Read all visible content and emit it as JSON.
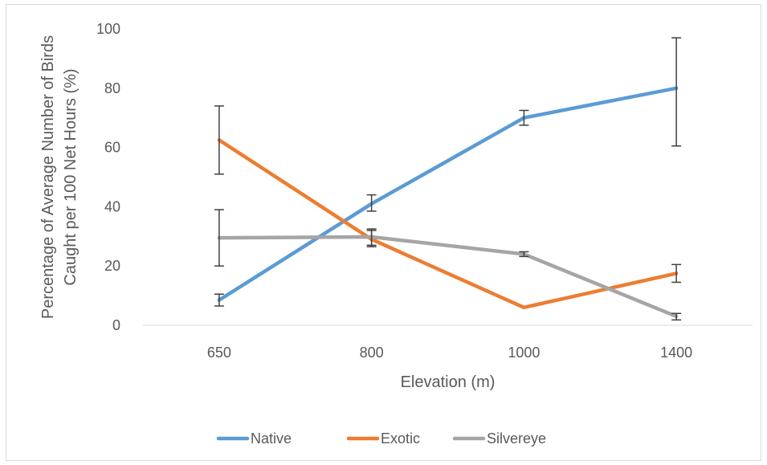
{
  "chart_data": {
    "type": "line",
    "title": "",
    "xlabel": "Elevation (m)",
    "ylabel_lines": [
      "Percentage of Average Number of Birds",
      "Caught per 100 Net Hours (%)"
    ],
    "categories": [
      "650",
      "800",
      "1000",
      "1400"
    ],
    "ylim": [
      0,
      100
    ],
    "yticks": [
      0,
      20,
      40,
      60,
      80,
      100
    ],
    "grid": false,
    "legend_position": "bottom",
    "series": [
      {
        "name": "Native",
        "color": "#5b9bd5",
        "values": [
          8.5,
          41,
          70,
          80
        ],
        "err_low": [
          6.5,
          38.5,
          67.5,
          60.5
        ],
        "err_high": [
          10.5,
          44,
          72.5,
          97
        ]
      },
      {
        "name": "Exotic",
        "color": "#ed7d31",
        "values": [
          62.5,
          29,
          6,
          17.5
        ],
        "err_low": [
          51,
          26.5,
          6,
          14.5
        ],
        "err_high": [
          74,
          32,
          6,
          20.5
        ]
      },
      {
        "name": "Silvereye",
        "color": "#a5a5a5",
        "values": [
          29.5,
          29.8,
          24,
          3
        ],
        "err_low": [
          20,
          27,
          23.2,
          1.8
        ],
        "err_high": [
          39,
          32.5,
          24.8,
          4
        ]
      }
    ]
  }
}
